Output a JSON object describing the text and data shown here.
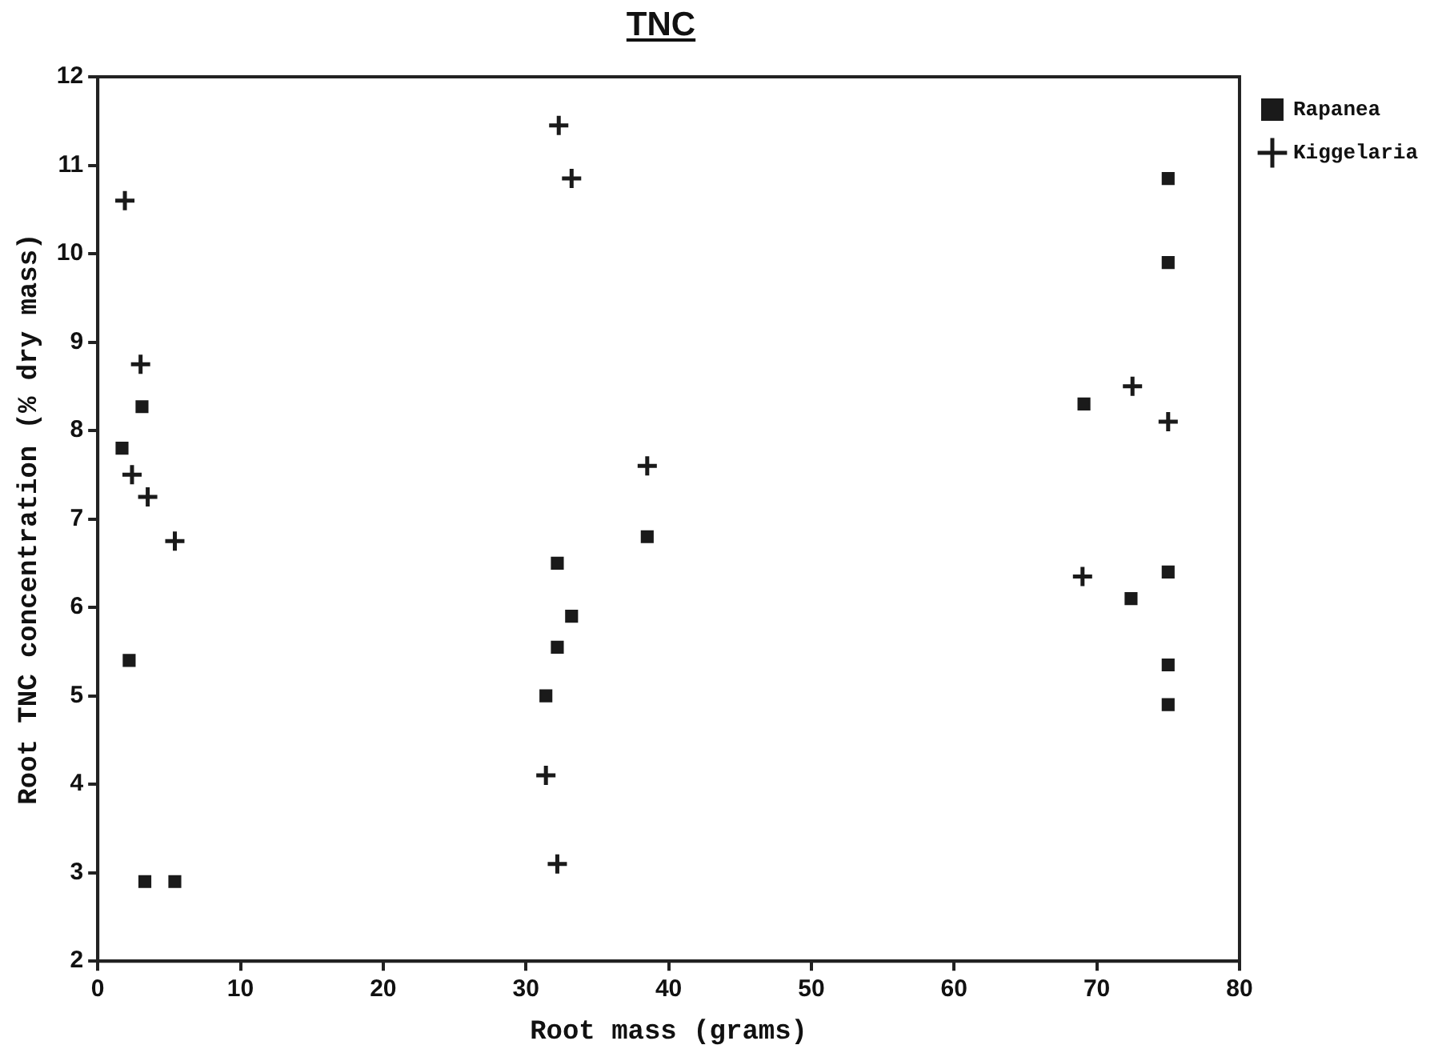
{
  "chart_data": {
    "type": "scatter",
    "title": "TNC",
    "xlabel": "Root mass (grams)",
    "ylabel": "Root TNC concentration (% dry mass)",
    "xlim": [
      0,
      80
    ],
    "xticks": [
      0,
      10,
      20,
      30,
      40,
      50,
      60,
      70,
      80
    ],
    "ylim": [
      2,
      12
    ],
    "yticks": [
      2,
      3,
      4,
      5,
      6,
      7,
      8,
      9,
      10,
      11,
      12
    ],
    "grid": false,
    "legend": "top right",
    "series": [
      {
        "name": "Rapanea",
        "color": "#1a1a1a",
        "marker": "square",
        "x": [
          1.7,
          3.1,
          2.2,
          3.3,
          5.4,
          32.2,
          33.2,
          32.2,
          31.4,
          38.5,
          69.1,
          72.4,
          75,
          75,
          75,
          75,
          75
        ],
        "values": [
          7.8,
          8.27,
          5.4,
          2.9,
          2.9,
          6.5,
          5.9,
          5.55,
          5.0,
          6.8,
          8.3,
          6.1,
          10.85,
          9.9,
          6.4,
          5.35,
          4.9
        ]
      },
      {
        "name": "Kiggelaria",
        "color": "#1a1a1a",
        "marker": "cross",
        "x": [
          1.9,
          3.0,
          2.4,
          3.5,
          5.4,
          32.3,
          33.2,
          31.4,
          32.2,
          38.5,
          69.0,
          72.5,
          75
        ],
        "values": [
          10.6,
          8.75,
          7.5,
          7.25,
          6.75,
          11.45,
          10.85,
          4.1,
          3.1,
          7.6,
          6.35,
          8.5,
          8.1
        ]
      }
    ]
  }
}
